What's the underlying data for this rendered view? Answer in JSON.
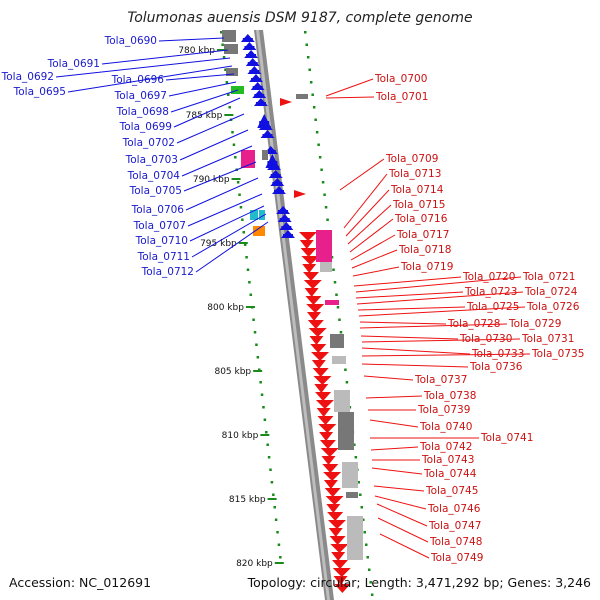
{
  "title": "Tolumonas auensis DSM 9187, complete genome",
  "accession": "Accession: NC_012691",
  "summary": "Topology: circular; Length: 3,471,292 bp; Genes: 3,246",
  "kbp_ticks": [
    "780 kbp",
    "785 kbp",
    "790 kbp",
    "795 kbp",
    "800 kbp",
    "805 kbp",
    "810 kbp",
    "815 kbp",
    "820 kbp"
  ],
  "genes_minus": [
    "Tola_0690",
    "Tola_0691",
    "Tola_0692",
    "Tola_0695",
    "Tola_0696",
    "Tola_0697",
    "Tola_0698",
    "Tola_0699",
    "Tola_0702",
    "Tola_0703",
    "Tola_0704",
    "Tola_0705",
    "Tola_0706",
    "Tola_0707",
    "Tola_0710",
    "Tola_0711",
    "Tola_0712"
  ],
  "genes_plus": [
    "Tola_0700",
    "Tola_0701",
    "Tola_0709",
    "Tola_0713",
    "Tola_0714",
    "Tola_0715",
    "Tola_0716",
    "Tola_0717",
    "Tola_0718",
    "Tola_0719",
    "Tola_0720",
    "Tola_0721",
    "Tola_0723",
    "Tola_0724",
    "Tola_0725",
    "Tola_0726",
    "Tola_0728",
    "Tola_0729",
    "Tola_0730",
    "Tola_0731",
    "Tola_0733",
    "Tola_0735",
    "Tola_0736",
    "Tola_0737",
    "Tola_0738",
    "Tola_0739",
    "Tola_0740",
    "Tola_0741",
    "Tola_0742",
    "Tola_0743",
    "Tola_0744",
    "Tola_0745",
    "Tola_0746",
    "Tola_0747",
    "Tola_0748",
    "Tola_0749"
  ],
  "colors": {
    "minus_strand": "#1010e0",
    "plus_strand": "#ee1111",
    "backbone": "#8a8a8a",
    "ticks": "#1a8a1a",
    "cog_pink": "#e8208c",
    "cog_gray": "#777777",
    "cog_green": "#22bb22",
    "cog_cyan": "#22bbcc",
    "cog_orange": "#ff8800"
  }
}
